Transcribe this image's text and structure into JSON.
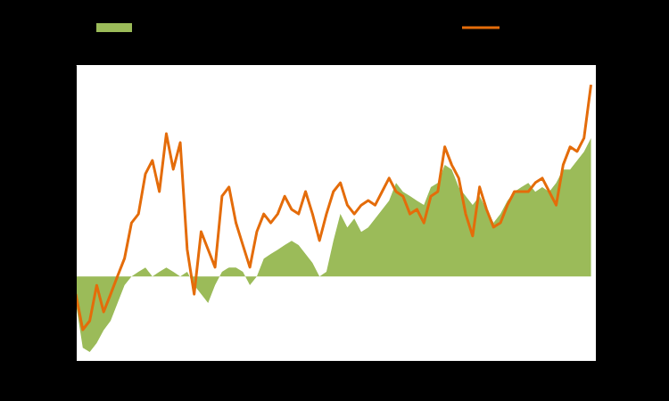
{
  "chart_data": {
    "type": "line",
    "x": [
      0,
      0.1,
      0.2,
      0.3,
      0.4,
      0.5,
      0.6,
      0.7,
      0.8,
      0.9,
      1,
      1.1,
      1.2,
      1.3,
      1.4,
      1.5,
      1.6,
      1.7,
      1.8,
      1.9,
      2,
      2.1,
      2.2,
      2.3,
      2.4,
      2.5,
      2.6,
      2.7,
      2.8,
      2.9,
      3,
      3.1,
      3.2,
      3.3,
      3.4,
      3.5,
      3.6,
      3.7,
      3.8,
      3.9,
      4,
      4.1,
      4.2,
      4.3,
      4.4,
      4.5,
      4.6,
      4.7,
      4.8,
      4.9,
      5,
      5.1,
      5.2,
      5.3,
      5.4,
      5.5,
      5.6,
      5.7,
      5.8,
      5.9,
      6,
      6.1,
      6.2,
      6.3,
      6.4,
      6.5,
      6.6,
      6.7,
      6.8,
      6.9,
      7,
      7.1,
      7.2,
      7.3,
      7.4
    ],
    "series": [
      {
        "type": "area",
        "axis": "y2",
        "color": "#9bbb59",
        "values": [
          -0.63,
          -1.69,
          -1.79,
          -1.58,
          -1.27,
          -1.05,
          -0.63,
          -0.21,
          0,
          0.11,
          0.21,
          0,
          0.11,
          0.21,
          0.11,
          0,
          0.11,
          -0.21,
          -0.42,
          -0.63,
          -0.21,
          0.11,
          0.21,
          0.21,
          0.11,
          -0.21,
          0,
          0.42,
          0.53,
          0.63,
          0.74,
          0.84,
          0.74,
          0.53,
          0.32,
          0,
          0.11,
          0.84,
          1.48,
          1.16,
          1.37,
          1.05,
          1.16,
          1.37,
          1.58,
          1.79,
          2.21,
          2.0,
          1.9,
          1.79,
          1.69,
          2.11,
          2.21,
          2.64,
          2.53,
          2.11,
          1.9,
          1.69,
          1.9,
          1.58,
          1.27,
          1.48,
          1.79,
          2.0,
          2.11,
          2.21,
          2.0,
          2.11,
          2.0,
          2.21,
          2.53,
          2.53,
          2.74,
          2.95,
          3.27
        ]
      },
      {
        "type": "line",
        "color": "#e46c0a",
        "values": [
          2.03,
          0.95,
          1.22,
          2.3,
          1.49,
          2.03,
          2.58,
          3.12,
          4.2,
          4.47,
          5.69,
          6.1,
          5.15,
          6.91,
          5.83,
          6.64,
          3.39,
          2.03,
          3.93,
          3.39,
          2.85,
          5.01,
          5.29,
          4.2,
          3.52,
          2.85,
          3.93,
          4.47,
          4.2,
          4.47,
          5.01,
          4.61,
          4.47,
          5.15,
          4.47,
          3.66,
          4.47,
          5.15,
          5.42,
          4.74,
          4.47,
          4.74,
          4.88,
          4.74,
          5.15,
          5.56,
          5.15,
          5.01,
          4.47,
          4.61,
          4.2,
          5.01,
          5.15,
          6.51,
          5.96,
          5.56,
          4.47,
          3.8,
          5.29,
          4.61,
          4.07,
          4.2,
          4.74,
          5.15,
          5.15,
          5.15,
          5.42,
          5.56,
          5.15,
          4.74,
          5.96,
          6.51,
          6.37,
          6.78,
          8.4
        ]
      }
    ],
    "xlim": [
      0,
      7.47
    ],
    "xticks": [
      0,
      1,
      2,
      3,
      4,
      5,
      6,
      7
    ],
    "ylim": [
      0,
      9
    ],
    "yticks": [
      0,
      1,
      2,
      3,
      4,
      5,
      6,
      7,
      8,
      9
    ],
    "y2lim": [
      -2,
      5
    ],
    "y2ticks": [
      -2,
      -1,
      0,
      1,
      2,
      3,
      4,
      5
    ],
    "tick_labels": false,
    "grid": false,
    "legend": "top"
  }
}
